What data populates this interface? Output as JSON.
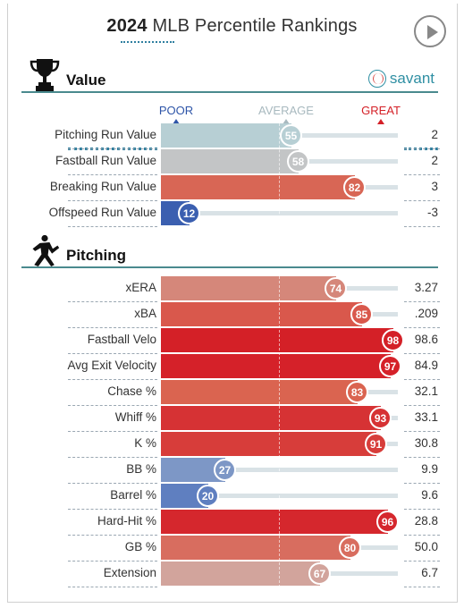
{
  "header": {
    "title_year": "2024",
    "title_rest": " MLB Percentile Rankings",
    "play_icon": "play-icon"
  },
  "scale": {
    "poor": "POOR",
    "average": "AVERAGE",
    "great": "GREAT"
  },
  "colors": {
    "accent": "#2f7f9f",
    "poor": "#2e55a8",
    "great": "#d42027"
  },
  "sections": [
    {
      "label": "Value",
      "icon": "trophy-icon",
      "brand": "savant",
      "rows": [
        {
          "name": "Pitching Run Value",
          "pct": 55,
          "value": "2",
          "color": "#b7cfd4",
          "track_color": "#d9e2e6"
        },
        {
          "name": "Fastball Run Value",
          "pct": 58,
          "value": "2",
          "color": "#c3c5c6",
          "track_color": "#d9e2e6"
        },
        {
          "name": "Breaking Run Value",
          "pct": 82,
          "value": "3",
          "color": "#d86655",
          "track_color": "#d9e2e6"
        },
        {
          "name": "Offspeed Run Value",
          "pct": 12,
          "value": "-3",
          "color": "#3b5fb0",
          "track_color": "#d9e2e6"
        }
      ]
    },
    {
      "label": "Pitching",
      "icon": "pitcher-icon",
      "rows": [
        {
          "name": "xERA",
          "pct": 74,
          "value": "3.27",
          "color": "#d5877a"
        },
        {
          "name": "xBA",
          "pct": 85,
          "value": ".209",
          "color": "#d9584c"
        },
        {
          "name": "Fastball Velo",
          "pct": 98,
          "value": "98.6",
          "color": "#d42027"
        },
        {
          "name": "Avg Exit Velocity",
          "pct": 97,
          "value": "84.9",
          "color": "#d52129"
        },
        {
          "name": "Chase %",
          "pct": 83,
          "value": "32.1",
          "color": "#da6450"
        },
        {
          "name": "Whiff %",
          "pct": 93,
          "value": "33.1",
          "color": "#d63234"
        },
        {
          "name": "K %",
          "pct": 91,
          "value": "30.8",
          "color": "#d73d3a"
        },
        {
          "name": "BB %",
          "pct": 27,
          "value": "9.9",
          "color": "#7d97c6"
        },
        {
          "name": "Barrel %",
          "pct": 20,
          "value": "9.6",
          "color": "#5f7fc0"
        },
        {
          "name": "Hard-Hit %",
          "pct": 96,
          "value": "28.8",
          "color": "#d5272d"
        },
        {
          "name": "GB %",
          "pct": 80,
          "value": "50.0",
          "color": "#d86d5f"
        },
        {
          "name": "Extension",
          "pct": 67,
          "value": "6.7",
          "color": "#d2a49c"
        }
      ]
    }
  ]
}
